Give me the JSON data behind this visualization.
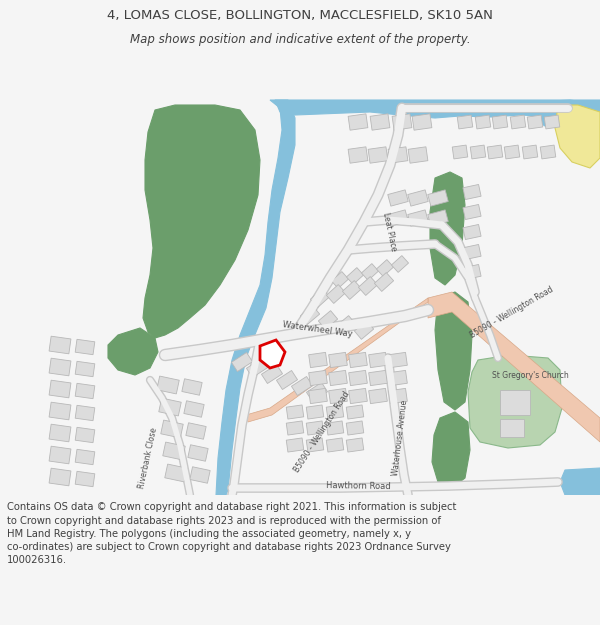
{
  "title": "4, LOMAS CLOSE, BOLLINGTON, MACCLESFIELD, SK10 5AN",
  "subtitle": "Map shows position and indicative extent of the property.",
  "footer": "Contains OS data © Crown copyright and database right 2021. This information is subject\nto Crown copyright and database rights 2023 and is reproduced with the permission of\nHM Land Registry. The polygons (including the associated geometry, namely x, y\nco-ordinates) are subject to Crown copyright and database rights 2023 Ordnance Survey\n100026316.",
  "bg_color": "#f5f5f5",
  "map_bg": "#ffffff",
  "title_fontsize": 9.5,
  "subtitle_fontsize": 8.5,
  "footer_fontsize": 7.2,
  "green_color": "#6b9e6b",
  "light_green": "#b8d4b0",
  "blue_color": "#85c0dc",
  "road_color": "#f0c8b0",
  "road_outline": "#d8a888",
  "building_fill": "#dcdcdc",
  "building_edge": "#b8b8b8",
  "yellow_road": "#f0e898",
  "yellow_outline": "#d8d060",
  "red_plot": "#dd0000",
  "text_color": "#404040",
  "road_text": "#505050",
  "map_border": "#cccccc"
}
